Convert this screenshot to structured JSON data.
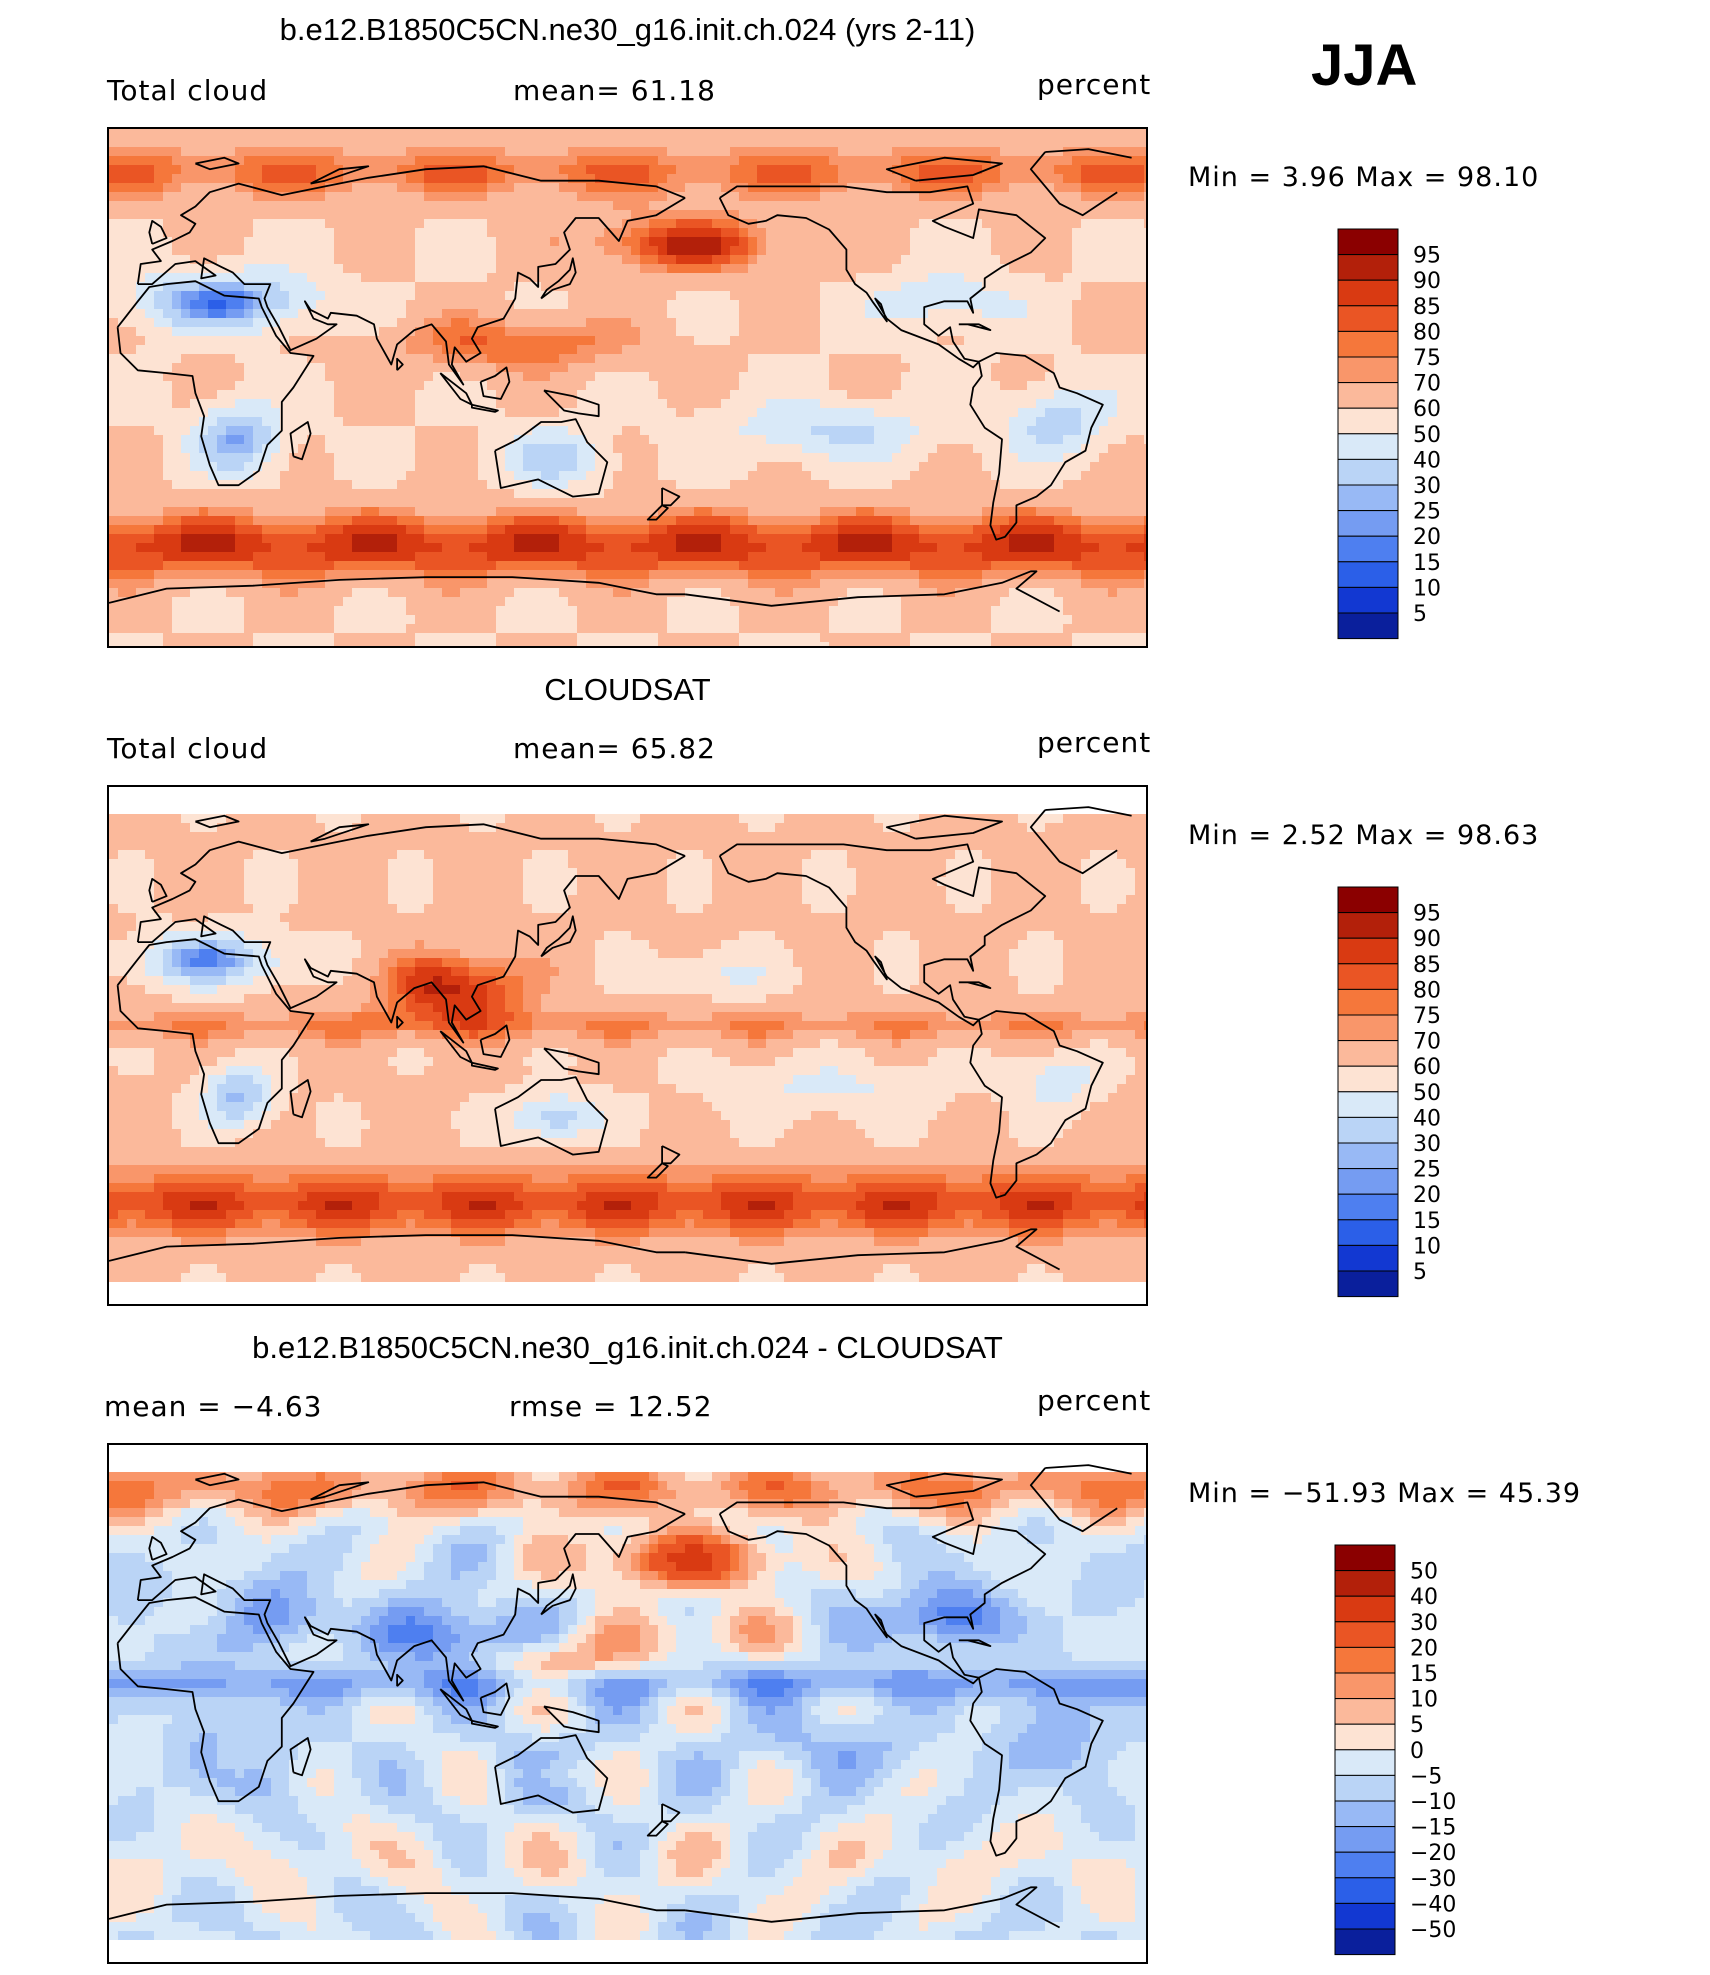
{
  "season_label": "JJA",
  "panels": [
    {
      "title": "b.e12.B1850C5CN.ne30_g16.init.ch.024 (yrs 2-11)",
      "left_label": "Total cloud",
      "center_label": "mean=   61.18",
      "units": "percent",
      "minmax": "Min =    3.96 Max =   98.10",
      "field": "model"
    },
    {
      "title": "CLOUDSAT",
      "left_label": "Total cloud",
      "center_label": "mean=   65.82",
      "units": "percent",
      "minmax": "Min =    2.52 Max =   98.63",
      "field": "obs"
    },
    {
      "title": "b.e12.B1850C5CN.ne30_g16.init.ch.024 - CLOUDSAT",
      "left_label": "mean =   −4.63",
      "center_label": "rmse =   12.52",
      "units": "percent",
      "minmax": "Min = −51.93 Max =   45.39",
      "field": "diff"
    }
  ],
  "colorbars": {
    "abs": {
      "labels": [
        "95",
        "90",
        "85",
        "80",
        "75",
        "70",
        "60",
        "50",
        "40",
        "30",
        "25",
        "20",
        "15",
        "10",
        "5"
      ],
      "colors": [
        "#8b0000",
        "#b3200a",
        "#d93a12",
        "#ea5524",
        "#f5773b",
        "#f9966a",
        "#fbb99b",
        "#fde3d3",
        "#d9e9f8",
        "#bad4f6",
        "#98b9f5",
        "#759cf2",
        "#4e7ff0",
        "#2b5fe8",
        "#1238d2",
        "#0a1f9c"
      ]
    },
    "diff": {
      "labels": [
        "50",
        "40",
        "30",
        "20",
        "15",
        "10",
        "5",
        "0",
        "−5",
        "−10",
        "−15",
        "−20",
        "−30",
        "−40",
        "−50"
      ],
      "colors": [
        "#8b0000",
        "#b3200a",
        "#d93a12",
        "#ea5524",
        "#f5773b",
        "#f9966a",
        "#fbb99b",
        "#fde3d3",
        "#d9e9f8",
        "#bad4f6",
        "#98b9f5",
        "#759cf2",
        "#4e7ff0",
        "#2b5fe8",
        "#1238d2",
        "#0a1f9c"
      ]
    }
  },
  "chart_data": [
    {
      "type": "heatmap",
      "title": "b.e12.B1850C5CN.ne30_g16.init.ch.024 (yrs 2-11)",
      "variable": "Total cloud",
      "units": "percent",
      "mean": 61.18,
      "min": 3.96,
      "max": 98.1,
      "levels": [
        5,
        10,
        15,
        20,
        25,
        30,
        40,
        50,
        60,
        70,
        75,
        80,
        85,
        90,
        95
      ],
      "map": "global cylindrical equidistant, centered on Pacific"
    },
    {
      "type": "heatmap",
      "title": "CLOUDSAT",
      "variable": "Total cloud",
      "units": "percent",
      "mean": 65.82,
      "min": 2.52,
      "max": 98.63,
      "levels": [
        5,
        10,
        15,
        20,
        25,
        30,
        40,
        50,
        60,
        70,
        75,
        80,
        85,
        90,
        95
      ],
      "map": "global cylindrical equidistant, centered on Pacific"
    },
    {
      "type": "heatmap",
      "title": "b.e12.B1850C5CN.ne30_g16.init.ch.024 - CLOUDSAT",
      "units": "percent",
      "mean": -4.63,
      "rmse": 12.52,
      "min": -51.93,
      "max": 45.39,
      "levels": [
        -50,
        -40,
        -30,
        -20,
        -15,
        -10,
        -5,
        0,
        5,
        10,
        15,
        20,
        30,
        40,
        50
      ],
      "map": "global cylindrical equidistant, centered on Pacific"
    }
  ]
}
